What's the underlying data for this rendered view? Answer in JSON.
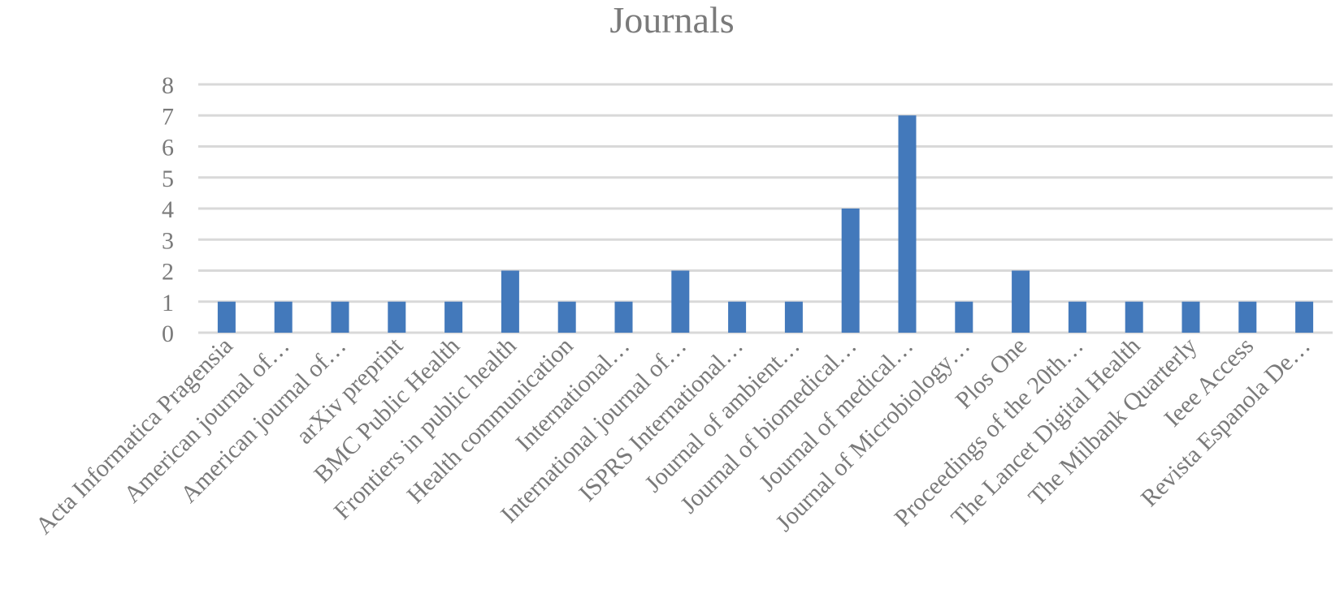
{
  "chart_data": {
    "type": "bar",
    "title": "Journals",
    "xlabel": "",
    "ylabel": "",
    "ylim": [
      0,
      8
    ],
    "yticks": [
      "0",
      "1",
      "2",
      "3",
      "4",
      "5",
      "6",
      "7",
      "8"
    ],
    "grid": true,
    "legend": "none",
    "bar_color": "#4379bb",
    "categories": [
      "Acta Informatica Pragensia",
      "American journal of…",
      "American journal of…",
      "arXiv preprint",
      "BMC Public Health",
      "Frontiers in public health",
      "Health communication",
      "International…",
      "International journal of…",
      "ISPRS International…",
      "Journal of ambient…",
      "Journal of biomedical…",
      "Journal of medical…",
      "Journal of Microbiology…",
      "Plos One",
      "Proceedings of the 20th…",
      "The Lancet Digital Health",
      "The Milbank Quarterly",
      "Ieee Access",
      "Revista Espanola De…"
    ],
    "values": [
      1,
      1,
      1,
      1,
      1,
      2,
      1,
      1,
      2,
      1,
      1,
      4,
      7,
      1,
      2,
      1,
      1,
      1,
      1,
      1
    ]
  }
}
